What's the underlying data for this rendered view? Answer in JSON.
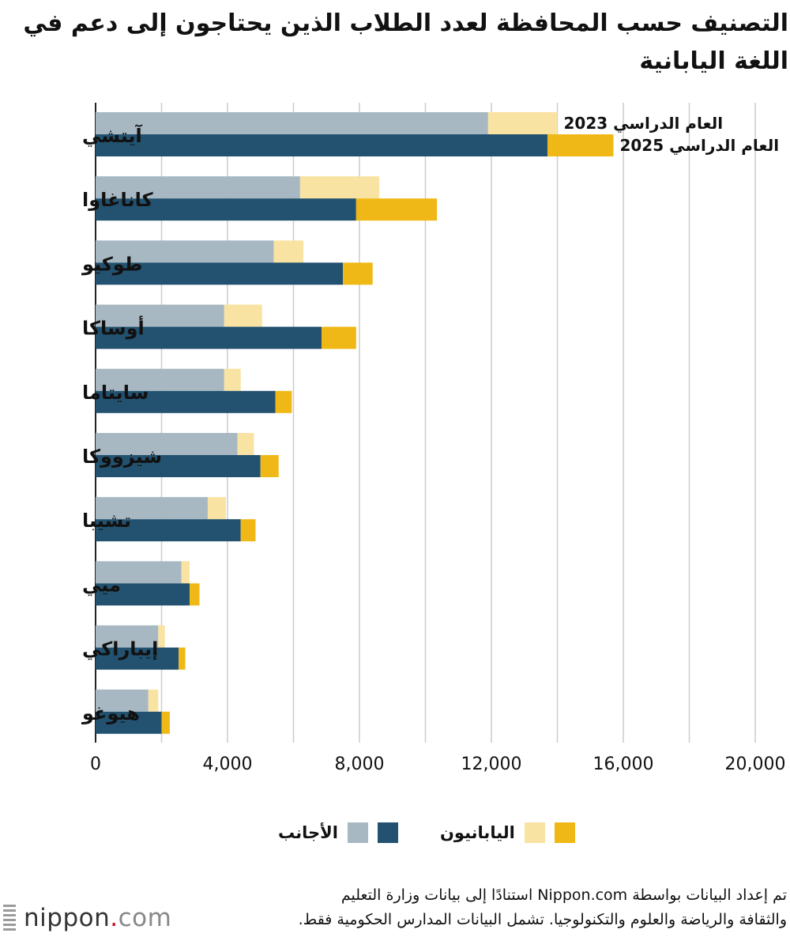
{
  "title": "التصنيف حسب المحافظة لعدد الطلاب الذين يحتاجون إلى دعم في اللغة اليابانية",
  "chart_data": {
    "type": "bar",
    "orientation": "horizontal",
    "stacked": true,
    "categories": [
      "آيتشي",
      "كاناغاوا",
      "طوكيو",
      "أوساكا",
      "سايتاما",
      "شيزووكا",
      "تشيبا",
      "ميي",
      "إيباراكي",
      "هيوغو"
    ],
    "years": [
      {
        "label": "العام الدراسي 2023",
        "foreign": [
          11900,
          6200,
          5400,
          3900,
          3900,
          4300,
          3400,
          2600,
          1900,
          1600
        ],
        "japanese": [
          2100,
          2400,
          900,
          1150,
          500,
          500,
          550,
          250,
          200,
          300
        ]
      },
      {
        "label": "العام الدراسي 2025",
        "foreign": [
          13700,
          7900,
          7500,
          6850,
          5450,
          5000,
          4400,
          2850,
          2520,
          2000
        ],
        "japanese": [
          2000,
          2450,
          900,
          1050,
          500,
          550,
          450,
          300,
          200,
          250
        ]
      }
    ],
    "xlim": [
      0,
      20000
    ],
    "xticks": [
      0,
      4000,
      8000,
      12000,
      16000,
      20000
    ],
    "xtick_labels": [
      "0",
      "4,000",
      "8,000",
      "12,000",
      "16,000",
      "20,000"
    ],
    "grid": true,
    "legend": {
      "japanese": "اليابانيون",
      "foreign": "الأجانب"
    },
    "colors": {
      "foreign_2023": "#a7b8c3",
      "foreign_2025": "#235270",
      "japanese_2023": "#f8e3a2",
      "japanese_2025": "#f0b816",
      "grid": "#cccccc",
      "axis": "#222222"
    }
  },
  "source": {
    "line1": "تم إعداد البيانات بواسطة Nippon.com استنادًا إلى بيانات وزارة التعليم",
    "line2": "والثقافة والرياضة والعلوم والتكنولوجيا. تشمل البيانات المدارس الحكومية فقط."
  },
  "logo": {
    "name": "nippon",
    "dot": ".",
    "tld": "com"
  }
}
